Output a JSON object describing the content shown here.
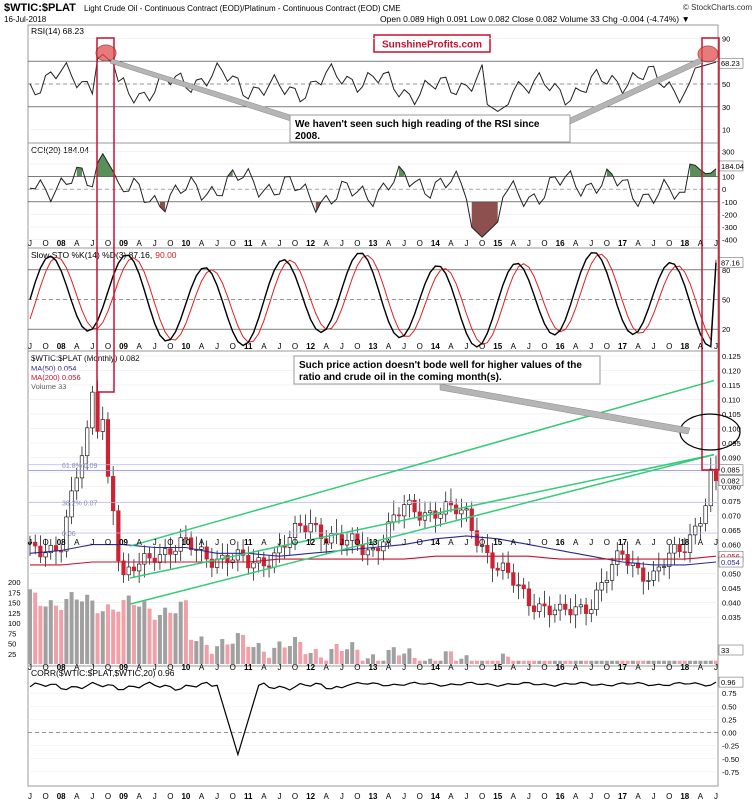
{
  "header": {
    "symbol": "$WTIC:$PLAT",
    "description": "Light Crude Oil - Continuous Contract (EOD)/Platinum - Continuous Contract (EOD)  CME",
    "date": "16-Jul-2018",
    "ohlc": "Open 0.089  High 0.091  Low 0.082  Close 0.082  Volume 33  Chg -0.004 (-4.74%) ▼",
    "copyright": "© StockCharts.com",
    "brand": "SunshineProfits.com"
  },
  "panels": {
    "rsi": {
      "label": "RSI(14) 68.23",
      "value": "68.23",
      "ticks": [
        "90",
        "70",
        "50",
        "30",
        "10"
      ]
    },
    "cci": {
      "label": "CCI(20) 184.04",
      "value": "184.04",
      "ticks": [
        "300",
        "200",
        "100",
        "0",
        "-100",
        "-200",
        "-300",
        "-400"
      ]
    },
    "sto": {
      "label": "Slow STO %K(14) %D(3) 87.16,",
      "label_d": "90.00",
      "value": "87.16",
      "ticks": [
        "80",
        "50",
        "20"
      ]
    },
    "price": {
      "label": "$WTIC:$PLAT (Monthly) 0.082",
      "ma50": "MA(50) 0.054",
      "ma200": "MA(200) 0.056",
      "volume": "Volume 33",
      "ticks": [
        "0.125",
        "0.120",
        "0.115",
        "0.110",
        "0.105",
        "0.100",
        "0.095",
        "0.090",
        "0.085",
        "0.080",
        "0.075",
        "0.070",
        "0.065",
        "0.060",
        "0.055",
        "0.050",
        "0.045",
        "0.040",
        "0.035"
      ],
      "vol_ticks": [
        "200",
        "175",
        "150",
        "125",
        "100",
        "75",
        "50",
        "25"
      ],
      "fib": [
        "61.8% 0.09",
        "38.2% 0.07",
        "0.06"
      ],
      "right_labels": [
        "0.082",
        "0.085",
        "0.056",
        "0.054"
      ],
      "vol_value": "33"
    },
    "corr": {
      "label": "CORR($WTIC:$PLAT,$WTIC,20) 0.96",
      "value": "0.96",
      "ticks": [
        "0.75",
        "0.50",
        "0.25",
        "0.00",
        "-0.25",
        "-0.50",
        "-0.75"
      ]
    }
  },
  "annotations": {
    "rsi_note": "We haven't seen such high reading of the RSI since 2008.",
    "price_note": "Such price action doesn't bode well for higher values of the ratio and crude oil in the coming month(s)."
  },
  "x_axis": {
    "labels": [
      "J",
      "O",
      "08",
      "A",
      "J",
      "O",
      "09",
      "A",
      "J",
      "O",
      "10",
      "A",
      "J",
      "O",
      "11",
      "A",
      "J",
      "O",
      "12",
      "A",
      "J",
      "O",
      "13",
      "A",
      "J",
      "O",
      "14",
      "A",
      "J",
      "O",
      "15",
      "A",
      "J",
      "O",
      "16",
      "A",
      "J",
      "O",
      "17",
      "A",
      "J",
      "O",
      "18",
      "A",
      "J"
    ]
  },
  "colors": {
    "up": "#ffffff",
    "down": "#cc2233",
    "ma50": "#2a2a8c",
    "ma200": "#c8102e",
    "trend": "#33cc77",
    "rsi_circle": "#e05050",
    "vol_up": "#a0a0a0",
    "vol_down": "#f0a0a8"
  },
  "chart_data": {
    "type": "line",
    "title": "$WTIC:$PLAT",
    "x": [
      "2007-07",
      "2008-01",
      "2008-07",
      "2009-01",
      "2009-07",
      "2010-01",
      "2010-07",
      "2011-01",
      "2011-07",
      "2012-01",
      "2012-07",
      "2013-01",
      "2013-07",
      "2014-01",
      "2014-07",
      "2015-01",
      "2015-07",
      "2016-01",
      "2016-07",
      "2017-01",
      "2017-07",
      "2018-01",
      "2018-07"
    ],
    "series": [
      {
        "name": "$WTIC:$PLAT",
        "values": [
          0.057,
          0.061,
          0.104,
          0.047,
          0.058,
          0.059,
          0.056,
          0.053,
          0.058,
          0.068,
          0.06,
          0.059,
          0.072,
          0.072,
          0.07,
          0.051,
          0.042,
          0.035,
          0.041,
          0.056,
          0.049,
          0.06,
          0.082
        ]
      },
      {
        "name": "MA(50)",
        "values": [
          0.057,
          0.058,
          0.06,
          0.06,
          0.059,
          0.059,
          0.057,
          0.057,
          0.056,
          0.057,
          0.058,
          0.059,
          0.06,
          0.062,
          0.063,
          0.062,
          0.06,
          0.058,
          0.056,
          0.054,
          0.053,
          0.053,
          0.054
        ]
      },
      {
        "name": "MA(200)",
        "values": [
          0.053,
          0.053,
          0.054,
          0.054,
          0.054,
          0.054,
          0.054,
          0.054,
          0.055,
          0.055,
          0.055,
          0.055,
          0.055,
          0.056,
          0.056,
          0.056,
          0.056,
          0.055,
          0.055,
          0.055,
          0.055,
          0.055,
          0.056
        ]
      }
    ],
    "ylim": [
      0.035,
      0.125
    ]
  }
}
